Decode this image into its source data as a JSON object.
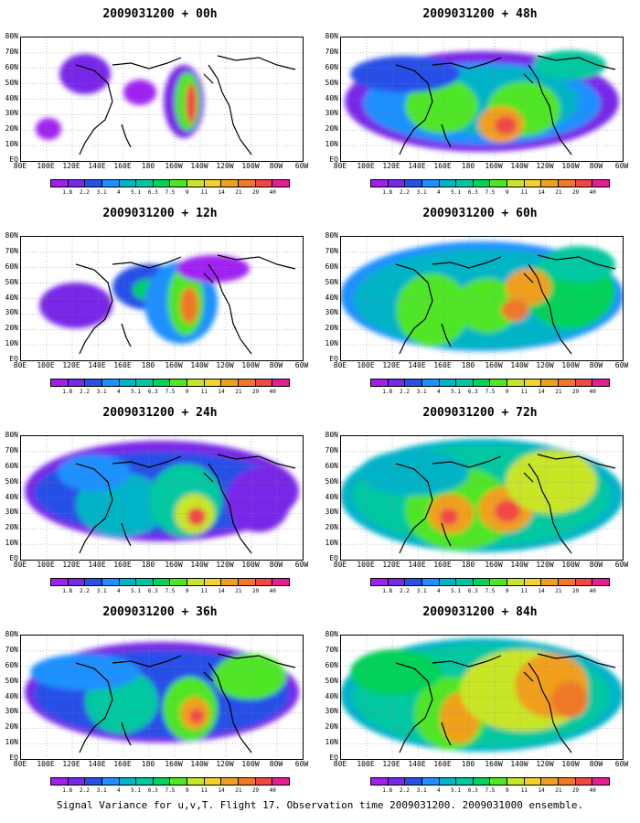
{
  "panels": [
    {
      "title": "2009031200 + 00h"
    },
    {
      "title": "2009031200 + 48h"
    },
    {
      "title": "2009031200 + 12h"
    },
    {
      "title": "2009031200 + 60h"
    },
    {
      "title": "2009031200 + 24h"
    },
    {
      "title": "2009031200 + 72h"
    },
    {
      "title": "2009031200 + 36h"
    },
    {
      "title": "2009031200 + 84h"
    }
  ],
  "lat_labels": [
    "80N",
    "70N",
    "60N",
    "50N",
    "40N",
    "30N",
    "20N",
    "10N",
    "EQ"
  ],
  "lon_labels": [
    "80E",
    "100E",
    "120E",
    "140E",
    "160E",
    "180",
    "160W",
    "140W",
    "120W",
    "100W",
    "80W",
    "60W"
  ],
  "colorbar": {
    "labels": [
      "1.8",
      "2.2",
      "3.1",
      "4",
      "5.1",
      "6.3",
      "7.5",
      "9",
      "11",
      "14",
      "21",
      "29",
      "40"
    ],
    "colors": [
      "#a020f0",
      "#7828e8",
      "#2850e8",
      "#1e90ff",
      "#00b4c8",
      "#00c8a0",
      "#00d25a",
      "#50e628",
      "#c8e628",
      "#f0d228",
      "#f0a01e",
      "#f07828",
      "#f04646",
      "#e61e96"
    ]
  },
  "caption": "Signal Variance for u,v,T. Flight 17. Observation time 2009031200. 2009031000 ensemble."
}
